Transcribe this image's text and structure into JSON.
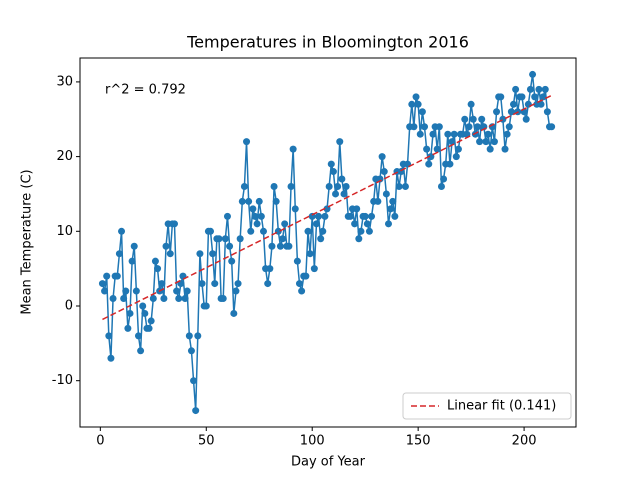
{
  "chart_data": {
    "type": "line",
    "title": "Temperatures in Bloomington 2016",
    "x_label": "Day of Year",
    "y_label": "Mean Temperature (C)",
    "annotation": "r^2 = 0.792",
    "x": [
      1,
      2,
      3,
      4,
      5,
      6,
      7,
      8,
      9,
      10,
      11,
      12,
      13,
      14,
      15,
      16,
      17,
      18,
      19,
      20,
      21,
      22,
      23,
      24,
      25,
      26,
      27,
      28,
      29,
      30,
      31,
      32,
      33,
      34,
      35,
      36,
      37,
      38,
      39,
      40,
      41,
      42,
      43,
      44,
      45,
      46,
      47,
      48,
      49,
      50,
      51,
      52,
      53,
      54,
      55,
      56,
      57,
      58,
      59,
      60,
      61,
      62,
      63,
      64,
      65,
      66,
      67,
      68,
      69,
      70,
      71,
      72,
      73,
      74,
      75,
      76,
      77,
      78,
      79,
      80,
      81,
      82,
      83,
      84,
      85,
      86,
      87,
      88,
      89,
      90,
      91,
      92,
      93,
      94,
      95,
      96,
      97,
      98,
      99,
      100,
      101,
      102,
      103,
      104,
      105,
      106,
      107,
      108,
      109,
      110,
      111,
      112,
      113,
      114,
      115,
      116,
      117,
      118,
      119,
      120,
      121,
      122,
      123,
      124,
      125,
      126,
      127,
      128,
      129,
      130,
      131,
      132,
      133,
      134,
      135,
      136,
      137,
      138,
      139,
      140,
      141,
      142,
      143,
      144,
      145,
      146,
      147,
      148,
      149,
      150,
      151,
      152,
      153,
      154,
      155,
      156,
      157,
      158,
      159,
      160,
      161,
      162,
      163,
      164,
      165,
      166,
      167,
      168,
      169,
      170,
      171,
      172,
      173,
      174,
      175,
      176,
      177,
      178,
      179,
      180,
      181,
      182,
      183,
      184,
      185,
      186,
      187,
      188,
      189,
      190,
      191,
      192,
      193,
      194,
      195,
      196,
      197,
      198,
      199,
      200,
      201,
      202,
      203,
      204,
      205,
      206,
      207,
      208,
      209,
      210,
      211,
      212,
      213
    ],
    "series": [
      {
        "name": "Mean Temperature",
        "color": "#1f77b4",
        "values": [
          3,
          2,
          4,
          -4,
          -7,
          1,
          4,
          4,
          7,
          10,
          1,
          2,
          -3,
          -1,
          6,
          8,
          2,
          -4,
          -6,
          0,
          -1,
          -3,
          -3,
          -2,
          1,
          6,
          5,
          2,
          3,
          1,
          8,
          11,
          7,
          11,
          11,
          2,
          1,
          3,
          4,
          1,
          2,
          -4,
          -6,
          -10,
          -14,
          -4,
          7,
          3,
          0,
          0,
          10,
          10,
          7,
          3,
          9,
          9,
          1,
          1,
          9,
          12,
          8,
          6,
          -1,
          2,
          3,
          9,
          14,
          16,
          22,
          14,
          10,
          13,
          12,
          11,
          14,
          12,
          10,
          5,
          3,
          5,
          8,
          16,
          14,
          10,
          8,
          9,
          11,
          8,
          8,
          16,
          21,
          13,
          6,
          3,
          2,
          4,
          4,
          10,
          7,
          12,
          5,
          11,
          12,
          9,
          10,
          12,
          13,
          16,
          19,
          18,
          15,
          16,
          22,
          17,
          15,
          16,
          12,
          12,
          13,
          11,
          13,
          9,
          10,
          12,
          12,
          11,
          10,
          12,
          14,
          17,
          14,
          17,
          20,
          18,
          15,
          11,
          13,
          14,
          12,
          18,
          16,
          18,
          19,
          16,
          19,
          24,
          27,
          24,
          28,
          27,
          23,
          26,
          24,
          21,
          19,
          20,
          23,
          24,
          21,
          24,
          16,
          17,
          19,
          23,
          19,
          22,
          23,
          20,
          21,
          23,
          23,
          25,
          23,
          24,
          27,
          25,
          23,
          24,
          22,
          25,
          24,
          22,
          23,
          21,
          24,
          22,
          26,
          28,
          28,
          25,
          21,
          23,
          24,
          26,
          27,
          29,
          26,
          28,
          28,
          26,
          25,
          27,
          29,
          31,
          28,
          27,
          29,
          27,
          28,
          29,
          26,
          24,
          24
        ]
      },
      {
        "name": "Linear fit (0.141)",
        "color": "#d62728",
        "dashed": true,
        "x": [
          1,
          213
        ],
        "values": [
          -1.8,
          28.2
        ]
      }
    ],
    "xlim": [
      -9.6,
      224.5
    ],
    "ylim": [
      -16.2,
      33.2
    ],
    "xticks": [
      0,
      50,
      100,
      150,
      200
    ],
    "yticks": [
      -10,
      0,
      10,
      20,
      30
    ],
    "legend": "lower right"
  }
}
